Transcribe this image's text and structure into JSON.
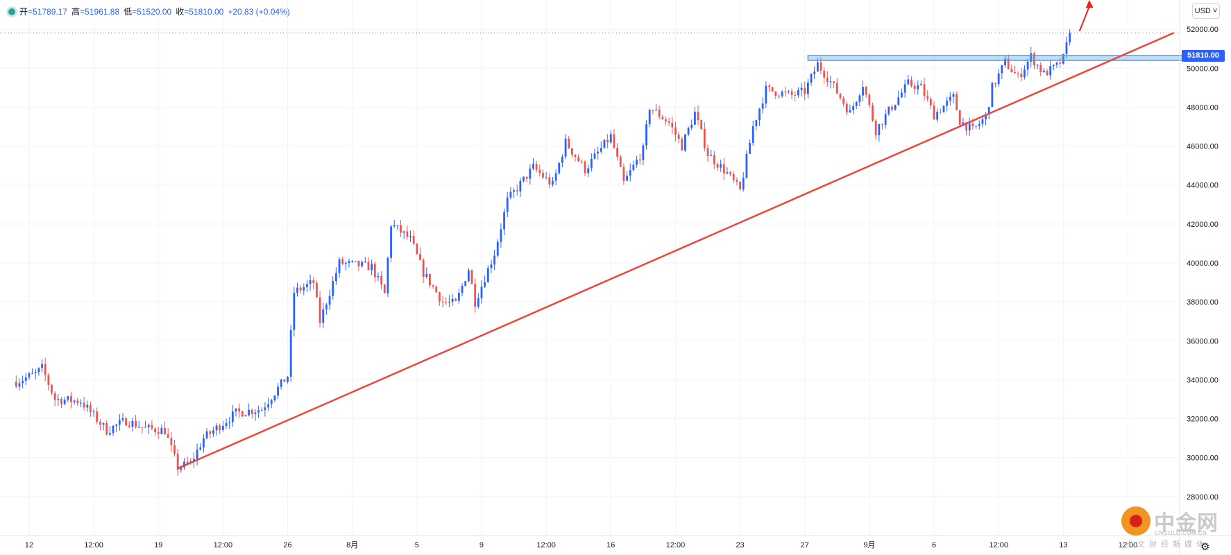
{
  "header": {
    "open_label": "开",
    "open": "=51789.17",
    "high_label": "高",
    "high": "=51961.88",
    "low_label": "低",
    "low": "=51520.00",
    "close_label": "收",
    "close": "=51810.00",
    "change": "+20.83 (+0.04%)"
  },
  "currency": "USD",
  "currency_btn_label": "USD ˅",
  "current_price_label": "51810.00",
  "logo": {
    "name": "中金网",
    "site": "CNGOLD.COM.CN",
    "tagline": "中文财经新媒体"
  },
  "chart_data": {
    "type": "candlestick",
    "title": "",
    "ylim": [
      26000,
      53500
    ],
    "yticks": [
      28000,
      30000,
      32000,
      34000,
      36000,
      38000,
      40000,
      42000,
      44000,
      46000,
      48000,
      50000,
      52000
    ],
    "ytick_labels": [
      "28000.00",
      "30000.00",
      "32000.00",
      "34000.00",
      "36000.00",
      "38000.00",
      "40000.00",
      "42000.00",
      "44000.00",
      "46000.00",
      "48000.00",
      "50000.00",
      "52000.00"
    ],
    "xticks": [
      {
        "label": "12",
        "t": 2
      },
      {
        "label": "12:00",
        "t": 12
      },
      {
        "label": "19",
        "t": 22
      },
      {
        "label": "12:00",
        "t": 32
      },
      {
        "label": "26",
        "t": 42
      },
      {
        "label": "8月",
        "t": 52
      },
      {
        "label": "5",
        "t": 62
      },
      {
        "label": "9",
        "t": 72
      },
      {
        "label": "12:00",
        "t": 82
      },
      {
        "label": "16",
        "t": 92
      },
      {
        "label": "12:00",
        "t": 102
      },
      {
        "label": "23",
        "t": 112
      },
      {
        "label": "27",
        "t": 122
      },
      {
        "label": "9月",
        "t": 132
      },
      {
        "label": "6",
        "t": 142
      },
      {
        "label": "12:00",
        "t": 152
      },
      {
        "label": "13",
        "t": 162
      },
      {
        "label": "12:00",
        "t": 172
      }
    ],
    "t_range": [
      -2.5,
      180
    ],
    "last_price": 51810,
    "price_anchors": [
      [
        0,
        33900
      ],
      [
        3,
        34300
      ],
      [
        4,
        34600
      ],
      [
        6,
        33000
      ],
      [
        10,
        32900
      ],
      [
        14,
        31400
      ],
      [
        17,
        31900
      ],
      [
        20,
        31500
      ],
      [
        23,
        31400
      ],
      [
        25,
        29500
      ],
      [
        27,
        29700
      ],
      [
        29,
        31000
      ],
      [
        34,
        32300
      ],
      [
        38,
        32500
      ],
      [
        42,
        34200
      ],
      [
        43,
        38500
      ],
      [
        46,
        39000
      ],
      [
        47,
        37000
      ],
      [
        50,
        40000
      ],
      [
        55,
        39800
      ],
      [
        57,
        38400
      ],
      [
        58,
        42000
      ],
      [
        61,
        41200
      ],
      [
        63,
        39500
      ],
      [
        66,
        38000
      ],
      [
        68,
        37900
      ],
      [
        70,
        39700
      ],
      [
        71,
        38000
      ],
      [
        74,
        40500
      ],
      [
        76,
        43200
      ],
      [
        80,
        44900
      ],
      [
        83,
        44000
      ],
      [
        85,
        46200
      ],
      [
        88,
        44800
      ],
      [
        92,
        46500
      ],
      [
        94,
        44100
      ],
      [
        97,
        45800
      ],
      [
        98,
        48000
      ],
      [
        101,
        47200
      ],
      [
        103,
        46000
      ],
      [
        105,
        47700
      ],
      [
        107,
        45600
      ],
      [
        110,
        44600
      ],
      [
        112,
        43700
      ],
      [
        114,
        47000
      ],
      [
        116,
        48900
      ],
      [
        120,
        48600
      ],
      [
        122,
        48800
      ],
      [
        124,
        50200
      ],
      [
        126,
        49300
      ],
      [
        129,
        47700
      ],
      [
        131,
        49200
      ],
      [
        133,
        46800
      ],
      [
        135,
        47800
      ],
      [
        138,
        49200
      ],
      [
        140,
        49000
      ],
      [
        142,
        47600
      ],
      [
        145,
        48500
      ],
      [
        146,
        47300
      ],
      [
        148,
        46800
      ],
      [
        150,
        47500
      ],
      [
        151,
        49000
      ],
      [
        153,
        50300
      ],
      [
        155,
        49500
      ],
      [
        157,
        50600
      ],
      [
        159,
        49700
      ],
      [
        161,
        50100
      ],
      [
        162,
        50500
      ],
      [
        163,
        51800
      ]
    ],
    "trendline": {
      "start": [
        25,
        29450
      ],
      "end": [
        179,
        51800
      ],
      "color": "#f0453a"
    },
    "resistance_zone": {
      "t_start": 122.5,
      "t_end": 184,
      "y_low": 50400,
      "y_high": 50650,
      "color": "#5b9bd5"
    },
    "arrow": {
      "from": [
        164.5,
        51900
      ],
      "to": [
        166,
        53500
      ],
      "color": "#e8231c"
    },
    "colors": {
      "up": "#2962ff",
      "down": "#ef5350",
      "grid": "#f0f3fa",
      "axis_text": "#131722"
    }
  }
}
